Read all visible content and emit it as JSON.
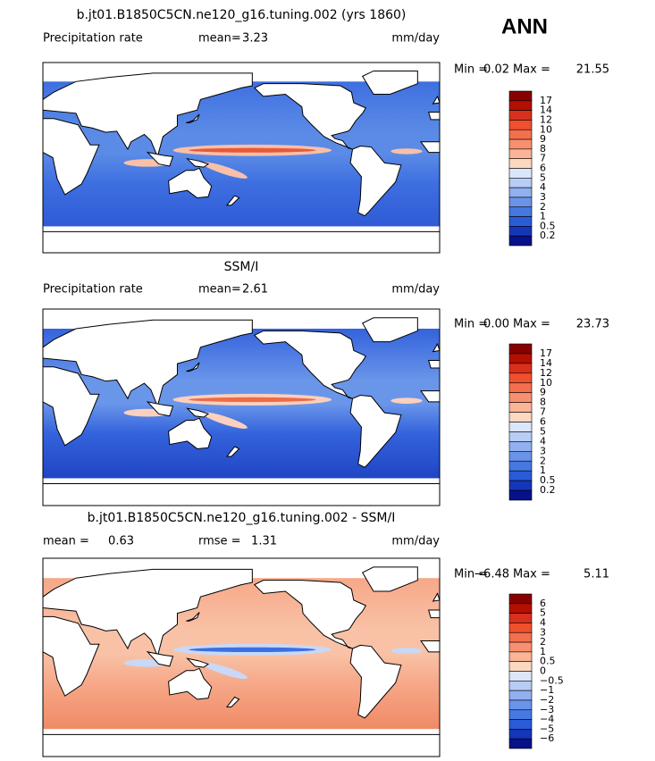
{
  "season": "ANN",
  "panels": [
    {
      "title": "b.jt01.B1850C5CN.ne120_g16.tuning.002 (yrs 1860)",
      "label": "Precipitation rate",
      "stats": [
        {
          "label": "mean=",
          "value": "3.23"
        }
      ],
      "units": "mm/day",
      "min_label": "Min =",
      "min": "0.02",
      "max_label": "Max =",
      "max": "21.55",
      "colorbar": {
        "labels": [
          "17",
          "14",
          "12",
          "10",
          "9",
          "8",
          "7",
          "6",
          "5",
          "4",
          "3",
          "2",
          "1",
          "0.5",
          "0.2"
        ],
        "colors": [
          "#870000",
          "#b40f00",
          "#d8301c",
          "#f0502e",
          "#f46f4e",
          "#f89070",
          "#fbb496",
          "#fdd8c0",
          "#dbe6fa",
          "#b8cdf5",
          "#90b0f0",
          "#6a93ea",
          "#4678e2",
          "#2a5bd8",
          "#1536b8",
          "#07118a"
        ]
      }
    },
    {
      "title": "SSM/I",
      "label": "Precipitation rate",
      "stats": [
        {
          "label": "mean=",
          "value": "2.61"
        }
      ],
      "units": "mm/day",
      "min_label": "Min =",
      "min": "0.00",
      "max_label": "Max =",
      "max": "23.73",
      "colorbar": {
        "labels": [
          "17",
          "14",
          "12",
          "10",
          "9",
          "8",
          "7",
          "6",
          "5",
          "4",
          "3",
          "2",
          "1",
          "0.5",
          "0.2"
        ],
        "colors": [
          "#870000",
          "#b40f00",
          "#d8301c",
          "#f0502e",
          "#f46f4e",
          "#f89070",
          "#fbb496",
          "#fdd8c0",
          "#dbe6fa",
          "#b8cdf5",
          "#90b0f0",
          "#6a93ea",
          "#4678e2",
          "#2a5bd8",
          "#1536b8",
          "#07118a"
        ]
      }
    },
    {
      "title": "b.jt01.B1850C5CN.ne120_g16.tuning.002 - SSM/I",
      "stats": [
        {
          "label": "mean =",
          "value": "0.63"
        },
        {
          "label": "rmse =",
          "value": "1.31"
        }
      ],
      "units": "mm/day",
      "min_label": "Min =",
      "min": "−6.48",
      "max_label": "Max =",
      "max": "5.11",
      "colorbar": {
        "labels": [
          "6",
          "5",
          "4",
          "3",
          "2",
          "1",
          "0.5",
          "0",
          "−0.5",
          "−1",
          "−2",
          "−3",
          "−4",
          "−5",
          "−6"
        ],
        "colors": [
          "#870000",
          "#b40f00",
          "#d8301c",
          "#f0502e",
          "#f46f4e",
          "#f89070",
          "#fbb496",
          "#fdd8c0",
          "#dbe6fa",
          "#b8cdf5",
          "#90b0f0",
          "#6a93ea",
          "#4678e2",
          "#2a5bd8",
          "#1536b8",
          "#07118a"
        ]
      }
    }
  ]
}
